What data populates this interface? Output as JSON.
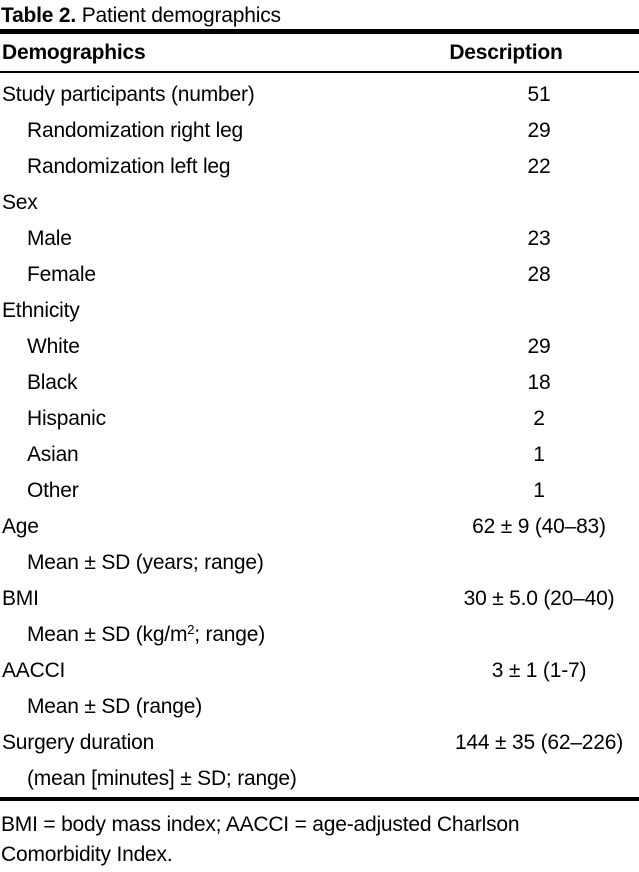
{
  "colors": {
    "background": "#ffffff",
    "text": "#000000",
    "rule": "#000000"
  },
  "title": {
    "label": "Table 2.",
    "text": "Patient demographics"
  },
  "table": {
    "header": {
      "demographics": "Demographics",
      "description": "Description"
    },
    "rows": [
      {
        "label": "Study participants (number)",
        "value": "51",
        "indent": false
      },
      {
        "label": "Randomization right leg",
        "value": "29",
        "indent": true
      },
      {
        "label": "Randomization left leg",
        "value": "22",
        "indent": true
      },
      {
        "label": "Sex",
        "value": "",
        "indent": false
      },
      {
        "label": "Male",
        "value": "23",
        "indent": true
      },
      {
        "label": "Female",
        "value": "28",
        "indent": true
      },
      {
        "label": "Ethnicity",
        "value": "",
        "indent": false
      },
      {
        "label": "White",
        "value": "29",
        "indent": true
      },
      {
        "label": "Black",
        "value": "18",
        "indent": true
      },
      {
        "label": "Hispanic",
        "value": "2",
        "indent": true
      },
      {
        "label": "Asian",
        "value": "1",
        "indent": true
      },
      {
        "label": "Other",
        "value": "1",
        "indent": true
      },
      {
        "label": "Age",
        "value": "62 ± 9 (40–83)",
        "indent": false
      },
      {
        "label": "Mean ± SD (years; range)",
        "value": "",
        "indent": true
      },
      {
        "label": "BMI",
        "value": "30 ± 5.0 (20–40)",
        "indent": false
      },
      {
        "label_pre": "Mean ± SD (kg/m",
        "label_sup": "2",
        "label_post": "; range)",
        "value": "",
        "indent": true
      },
      {
        "label": "AACCI",
        "value": "3 ± 1 (1-7)",
        "indent": false
      },
      {
        "label": "Mean ± SD (range)",
        "value": "",
        "indent": true
      },
      {
        "label": "Surgery duration",
        "value": "144 ± 35 (62–226)",
        "indent": false
      },
      {
        "label": "(mean [minutes] ± SD; range)",
        "value": "",
        "indent": true
      }
    ]
  },
  "footnote": "BMI = body mass index; AACCI = age-adjusted Charlson Comorbidity Index."
}
